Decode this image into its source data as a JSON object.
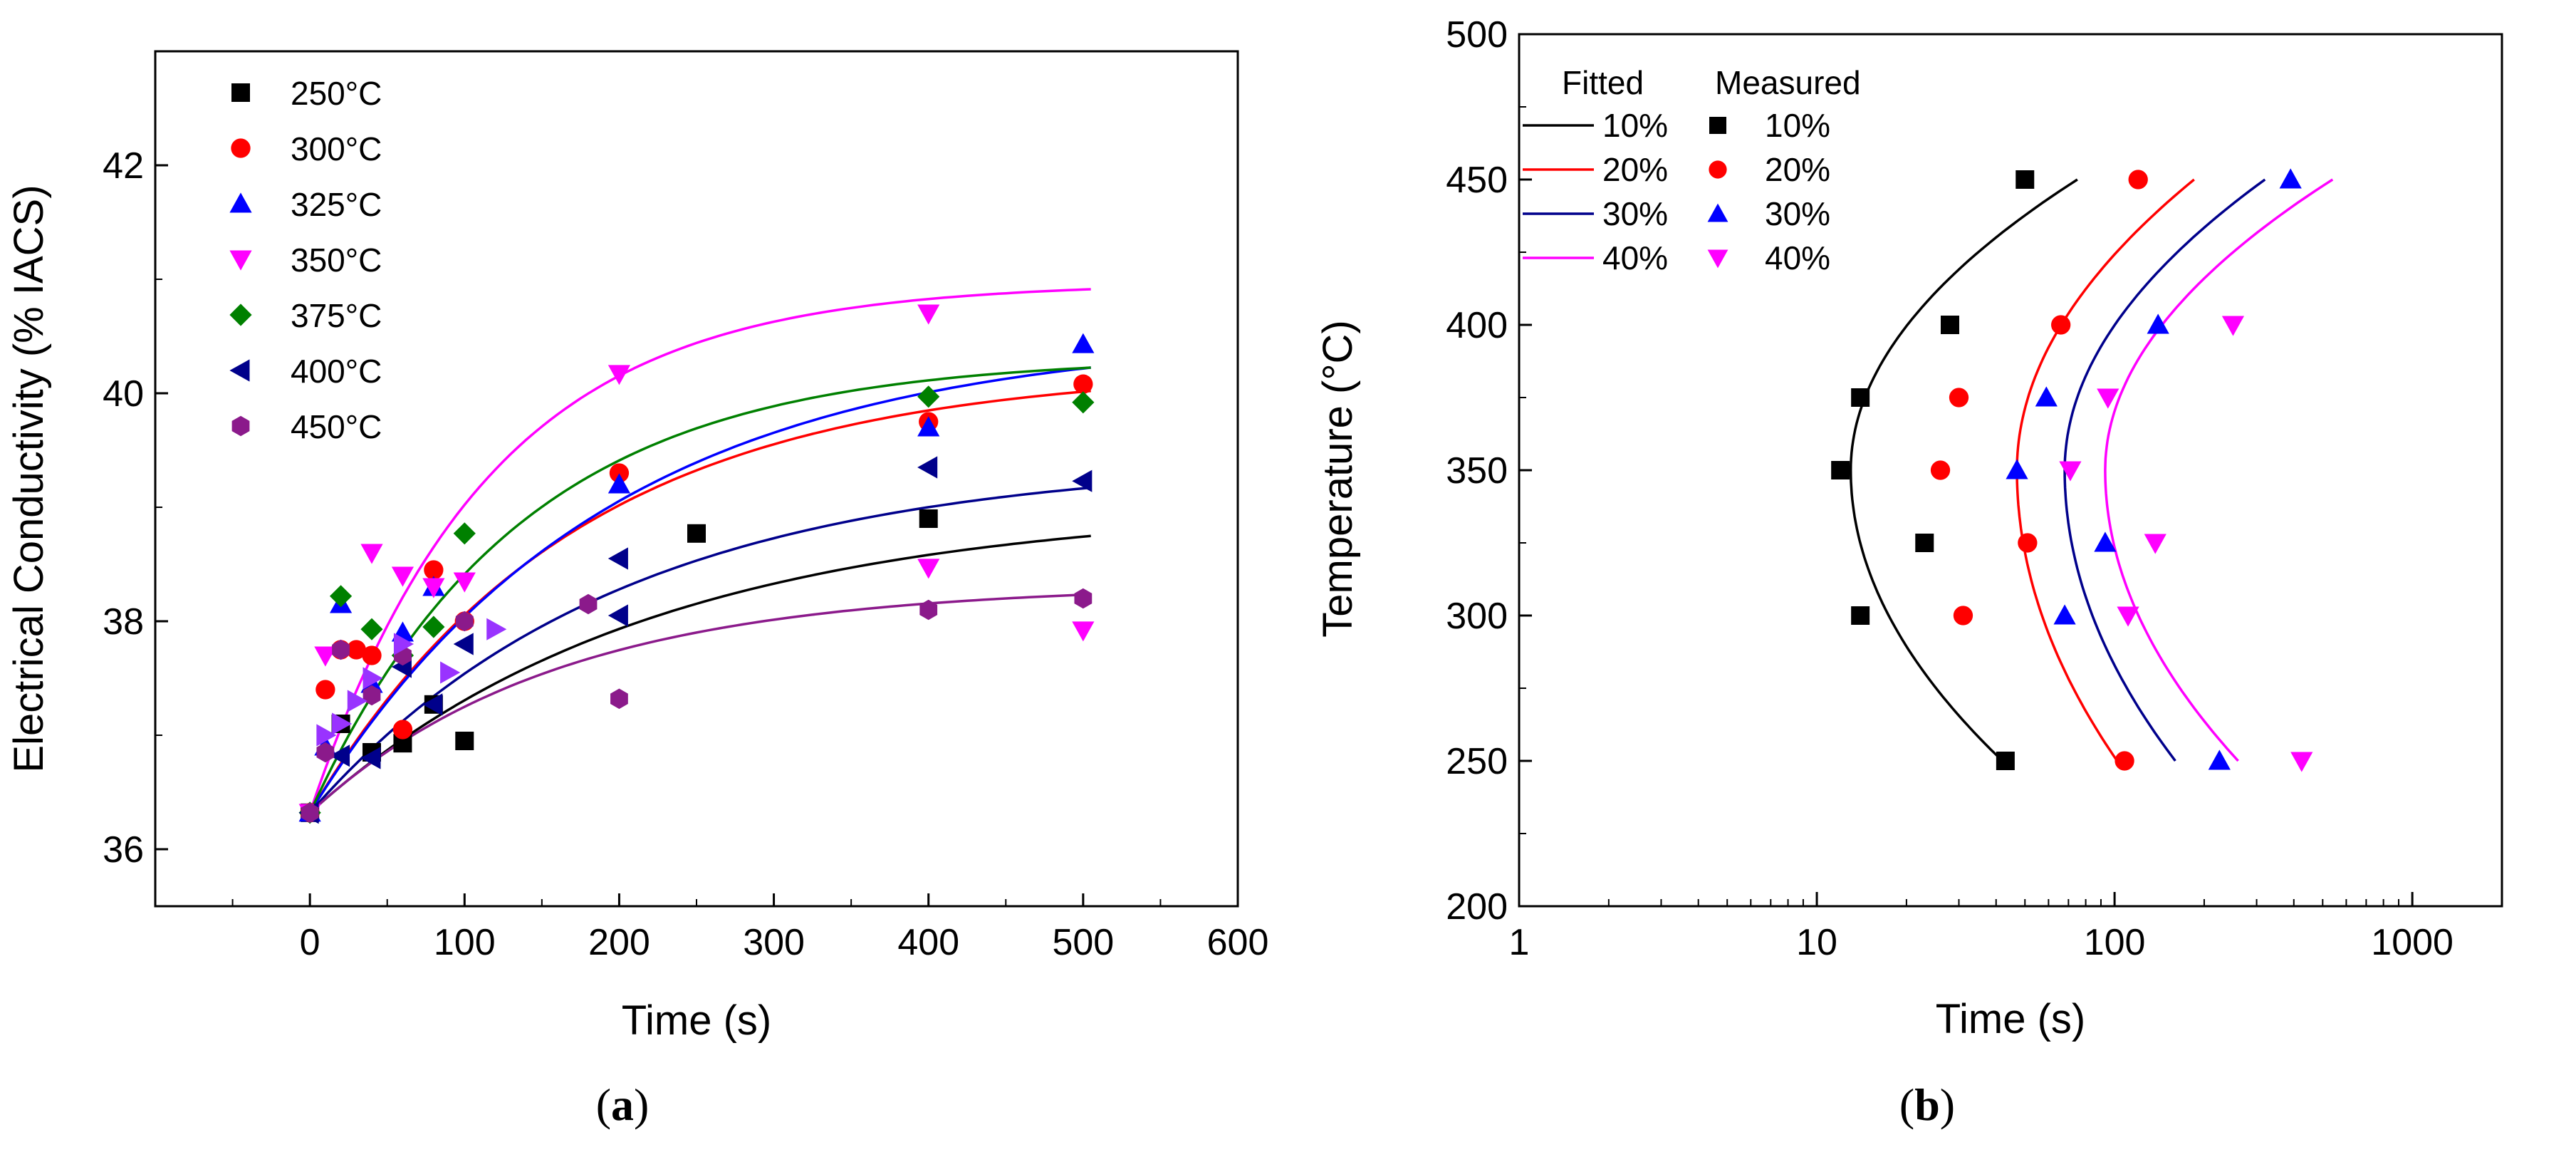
{
  "chart_data": [
    {
      "type": "scatter",
      "panel_label": {
        "open": "(",
        "letter": "a",
        "close": ")"
      },
      "xlabel": "Time (s)",
      "ylabel": "Electrical Conductivity (% IACS)",
      "xlim": [
        -100,
        600
      ],
      "ylim": [
        35.5,
        43
      ],
      "xticks": [
        0,
        100,
        200,
        300,
        400,
        500,
        600
      ],
      "yticks": [
        36,
        38,
        40,
        42
      ],
      "legend_position": "top-left",
      "series": [
        {
          "name": "250°C",
          "color": "#000000",
          "marker": "square",
          "points": [
            [
              0,
              36.32
            ],
            [
              20,
              37.1
            ],
            [
              40,
              36.85
            ],
            [
              60,
              36.93
            ],
            [
              80,
              37.27
            ],
            [
              100,
              36.95
            ],
            [
              250,
              38.77
            ],
            [
              400,
              38.9
            ]
          ],
          "fit": {
            "a": 36.32,
            "b": 2.7,
            "tau": 220
          }
        },
        {
          "name": "300°C",
          "color": "#ff0000",
          "marker": "circle",
          "points": [
            [
              0,
              36.32
            ],
            [
              10,
              37.4
            ],
            [
              20,
              37.75
            ],
            [
              30,
              37.75
            ],
            [
              40,
              37.7
            ],
            [
              60,
              37.05
            ],
            [
              80,
              38.45
            ],
            [
              100,
              38.0
            ],
            [
              200,
              39.3
            ],
            [
              400,
              39.75
            ],
            [
              500,
              40.08
            ]
          ],
          "fit": {
            "a": 36.32,
            "b": 3.9,
            "tau": 170
          }
        },
        {
          "name": "325°C",
          "color": "#0000ff",
          "marker": "triangle-up",
          "points": [
            [
              0,
              36.32
            ],
            [
              10,
              36.9
            ],
            [
              20,
              38.15
            ],
            [
              40,
              37.45
            ],
            [
              60,
              37.9
            ],
            [
              80,
              38.3
            ],
            [
              200,
              39.2
            ],
            [
              400,
              39.7
            ],
            [
              500,
              40.43
            ]
          ],
          "fit": {
            "a": 36.32,
            "b": 4.2,
            "tau": 190
          }
        },
        {
          "name": "350°C",
          "color": "#ff00ff",
          "marker": "triangle-down",
          "points": [
            [
              0,
              36.32
            ],
            [
              10,
              37.7
            ],
            [
              40,
              38.6
            ],
            [
              60,
              38.4
            ],
            [
              80,
              38.3
            ],
            [
              100,
              38.35
            ],
            [
              200,
              40.17
            ],
            [
              400,
              40.7
            ],
            [
              400,
              38.47
            ],
            [
              500,
              37.92
            ]
          ],
          "fit": {
            "a": 36.32,
            "b": 4.65,
            "tau": 115
          }
        },
        {
          "name": "375°C",
          "color": "#008000",
          "marker": "diamond",
          "points": [
            [
              0,
              36.32
            ],
            [
              20,
              38.22
            ],
            [
              40,
              37.93
            ],
            [
              60,
              37.7
            ],
            [
              80,
              37.95
            ],
            [
              100,
              38.77
            ],
            [
              400,
              39.97
            ],
            [
              500,
              39.92
            ]
          ],
          "fit": {
            "a": 36.32,
            "b": 4.0,
            "tau": 135
          }
        },
        {
          "name": "400°C",
          "color": "#00008b",
          "marker": "triangle-left",
          "points": [
            [
              0,
              36.32
            ],
            [
              20,
              36.82
            ],
            [
              40,
              36.8
            ],
            [
              60,
              37.6
            ],
            [
              80,
              37.27
            ],
            [
              100,
              37.8
            ],
            [
              200,
              38.55
            ],
            [
              200,
              38.05
            ],
            [
              400,
              39.35
            ],
            [
              500,
              39.23
            ]
          ],
          "fit": {
            "a": 36.32,
            "b": 3.1,
            "tau": 200
          }
        },
        {
          "name": "450°C",
          "color": "#8b1a8b",
          "marker": "hexagon",
          "points": [
            [
              0,
              36.32
            ],
            [
              10,
              36.85
            ],
            [
              20,
              37.75
            ],
            [
              40,
              37.35
            ],
            [
              60,
              37.7
            ],
            [
              100,
              38.0
            ],
            [
              180,
              38.15
            ],
            [
              200,
              37.32
            ],
            [
              400,
              38.1
            ],
            [
              500,
              38.2
            ]
          ],
          "fit": {
            "a": 36.32,
            "b": 2.0,
            "tau": 160
          }
        },
        {
          "name": "",
          "color": "#9933ff",
          "marker": "triangle-right",
          "points": [
            [
              10,
              37.0
            ],
            [
              20,
              37.1
            ],
            [
              30,
              37.3
            ],
            [
              40,
              37.5
            ],
            [
              60,
              37.8
            ],
            [
              90,
              37.55
            ],
            [
              120,
              37.93
            ]
          ],
          "fit": null
        }
      ]
    },
    {
      "type": "line",
      "panel_label": {
        "open": "(",
        "letter": "b",
        "close": ")"
      },
      "xlabel": "Time (s)",
      "ylabel": "Temperature (°C)",
      "xscale": "log",
      "xlim": [
        1,
        2000
      ],
      "ylim": [
        200,
        500
      ],
      "xticks": [
        1,
        10,
        100,
        1000
      ],
      "xtick_labels": [
        "1",
        "10",
        "100",
        "1000"
      ],
      "yticks": [
        200,
        250,
        300,
        350,
        400,
        450,
        500
      ],
      "legend_position": "top-left",
      "legend_headers": {
        "fitted": "Fitted",
        "measured": "Measured"
      },
      "fitted": [
        {
          "name": "10%",
          "color": "#000000",
          "vertex_t": 13.0,
          "curvature": 2.45e-05,
          "t_450": 75,
          "t_250": 42
        },
        {
          "name": "20%",
          "color": "#ff0000",
          "vertex_t": 47,
          "curvature": 2.76e-05,
          "t_450": 185,
          "t_250": 102
        },
        {
          "name": "30%",
          "color": "#00008b",
          "vertex_t": 68,
          "curvature": 2.72e-05,
          "t_450": 320,
          "t_250": 160
        },
        {
          "name": "40%",
          "color": "#ff00ff",
          "vertex_t": 93,
          "curvature": 2.86e-05,
          "t_450": 540,
          "t_250": 260
        }
      ],
      "measured": [
        {
          "name": "10%",
          "color": "#000000",
          "marker": "square",
          "points": [
            [
              43,
              250
            ],
            [
              14,
              300
            ],
            [
              23,
              325
            ],
            [
              12,
              350
            ],
            [
              14,
              375
            ],
            [
              28,
              400
            ],
            [
              50,
              450
            ]
          ]
        },
        {
          "name": "20%",
          "color": "#ff0000",
          "marker": "circle",
          "points": [
            [
              108,
              250
            ],
            [
              31,
              300
            ],
            [
              51,
              325
            ],
            [
              26,
              350
            ],
            [
              30,
              375
            ],
            [
              66,
              400
            ],
            [
              120,
              450
            ]
          ]
        },
        {
          "name": "30%",
          "color": "#0000ff",
          "marker": "triangle-up",
          "points": [
            [
              225,
              250
            ],
            [
              68,
              300
            ],
            [
              93,
              325
            ],
            [
              47,
              350
            ],
            [
              59,
              375
            ],
            [
              140,
              400
            ],
            [
              390,
              450
            ]
          ]
        },
        {
          "name": "40%",
          "color": "#ff00ff",
          "marker": "triangle-down",
          "points": [
            [
              425,
              250
            ],
            [
              111,
              300
            ],
            [
              137,
              325
            ],
            [
              71,
              350
            ],
            [
              95,
              375
            ],
            [
              250,
              400
            ]
          ]
        }
      ]
    }
  ]
}
